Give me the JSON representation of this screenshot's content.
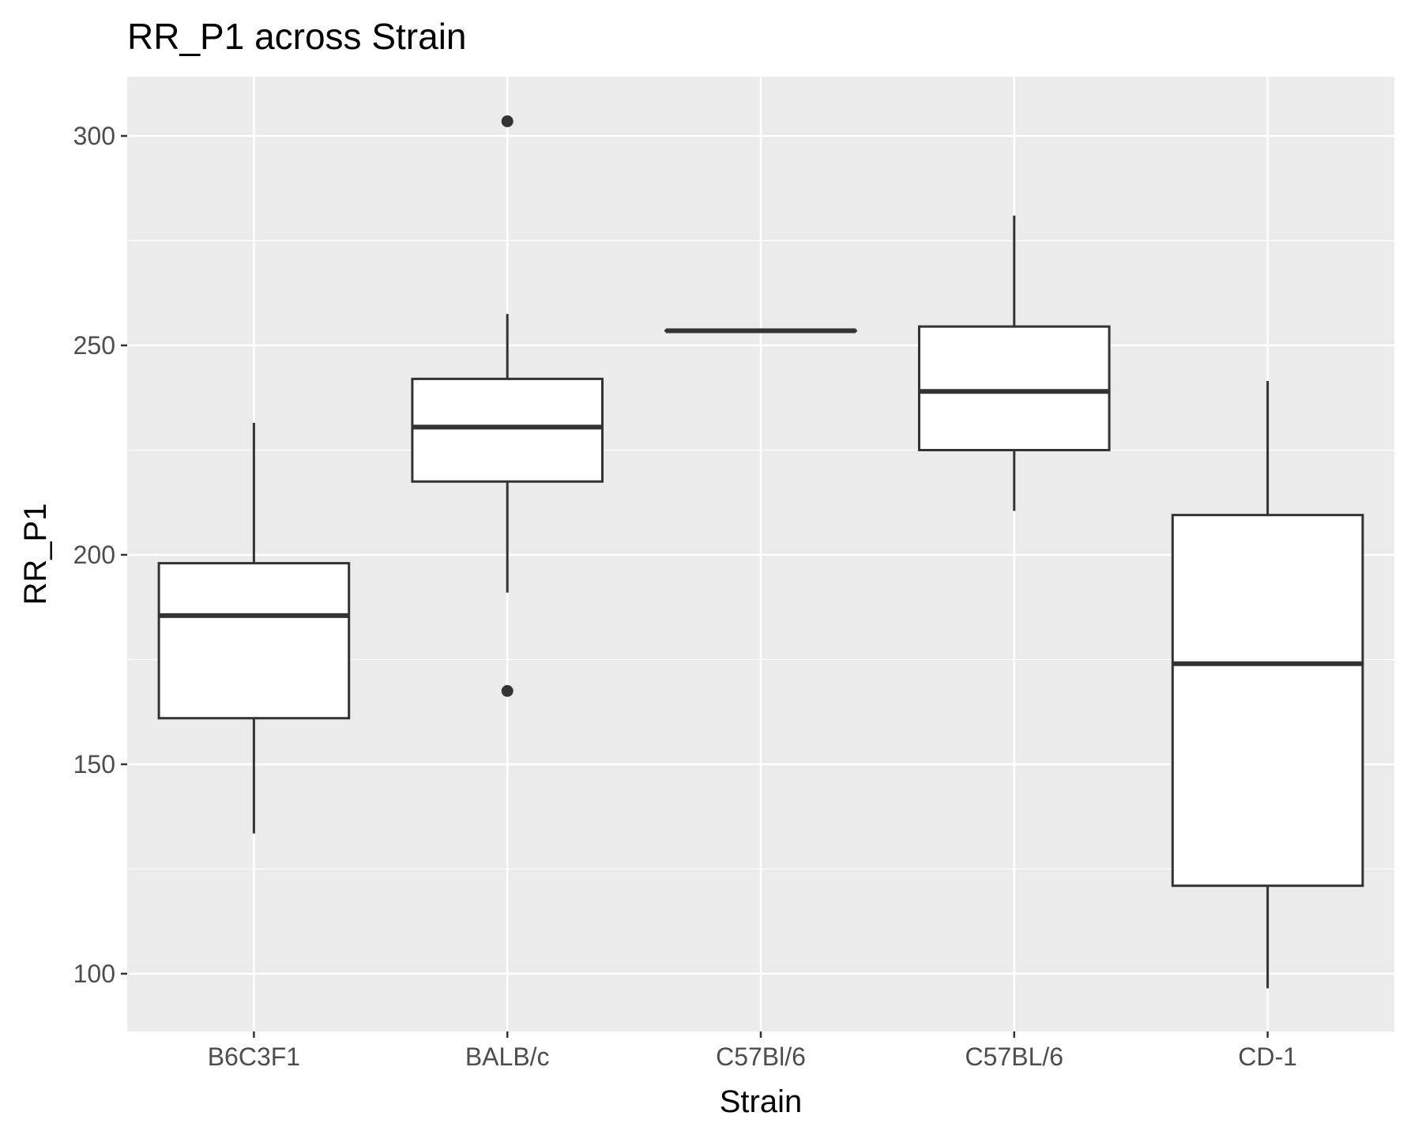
{
  "chart_data": {
    "type": "boxplot",
    "title": "RR_P1 across Strain",
    "xlabel": "Strain",
    "ylabel": "RR_P1",
    "categories": [
      "B6C3F1",
      "BALB/c",
      "C57Bl/6",
      "C57BL/6",
      "CD-1"
    ],
    "y_ticks": [
      100,
      150,
      200,
      250,
      300
    ],
    "ylim": [
      88,
      316
    ],
    "grid": true,
    "boxes": [
      {
        "category": "B6C3F1",
        "whisker_low": 133.5,
        "q1": 161,
        "median": 185.5,
        "q3": 198,
        "whisker_high": 231.5,
        "outliers": []
      },
      {
        "category": "BALB/c",
        "whisker_low": 191,
        "q1": 217.5,
        "median": 230.5,
        "q3": 242,
        "whisker_high": 257.5,
        "outliers": [
          303.5,
          167.5
        ]
      },
      {
        "category": "C57Bl/6",
        "whisker_low": 253.5,
        "q1": 253.5,
        "median": 253.5,
        "q3": 253.5,
        "whisker_high": 253.5,
        "outliers": []
      },
      {
        "category": "C57BL/6",
        "whisker_low": 210.5,
        "q1": 225,
        "median": 239,
        "q3": 254.5,
        "whisker_high": 281,
        "outliers": []
      },
      {
        "category": "CD-1",
        "whisker_low": 96.5,
        "q1": 121,
        "median": 174,
        "q3": 209.5,
        "whisker_high": 241.5,
        "outliers": []
      }
    ],
    "colors": {
      "panel": "#ebebeb",
      "grid": "#ffffff",
      "box_line": "#333333",
      "box_fill": "#ffffff",
      "tick_label": "#4d4d4d",
      "tick_mark": "#333333"
    }
  }
}
